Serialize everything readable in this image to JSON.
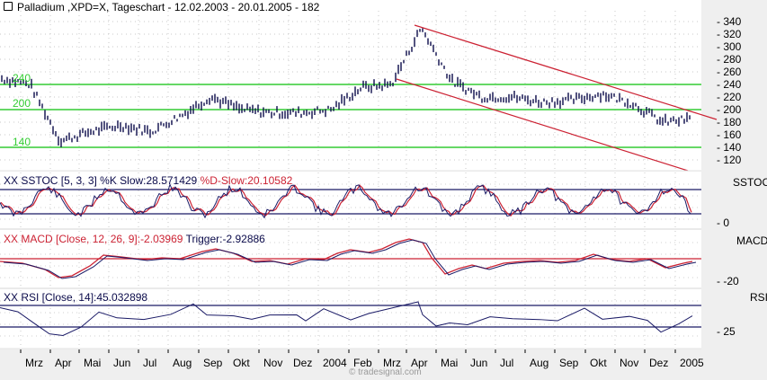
{
  "header": {
    "icon": "chart-pin-icon",
    "title": "Palladium ,XPD=X, Tageschart - 12.02.2003 - 20.01.2005 - 182"
  },
  "panels": {
    "sstoc": {
      "label": "SSTOC",
      "legend_k": "XX SSTOC [5, 3, 3] %K Slow:28.571429",
      "legend_d": "%D-Slow:20.10582",
      "tick": "0"
    },
    "macd": {
      "label": "MACD",
      "legend_macd": "XX MACD [Close, 12, 26, 9]:-2.03969",
      "legend_trigger": "Trigger:-2.92886",
      "tick": "-20"
    },
    "rsi": {
      "label": "RSI",
      "legend": "XX RSI [Close, 14]:45.032898",
      "tick": "25"
    }
  },
  "credit": "© tradesignal.com",
  "colors": {
    "price": "#0a0a4a",
    "support": "#33cc33",
    "channel": "#cc2233",
    "signal": "#cc2233",
    "band": "#1a1a66"
  },
  "chart_data": [
    {
      "type": "bar",
      "title": "Palladium ,XPD=X, Tageschart - 12.02.2003 - 20.01.2005 - 182",
      "xlabel": "",
      "ylabel": "",
      "ylim": [
        110,
        350
      ],
      "y_ticks": [
        340,
        320,
        300,
        280,
        260,
        240,
        220,
        200,
        180,
        160,
        140,
        120
      ],
      "x_ticks": [
        "Mrz",
        "Apr",
        "Mai",
        "Jun",
        "Jul",
        "Aug",
        "Sep",
        "Okt",
        "Nov",
        "Dez",
        "2004",
        "Feb",
        "Mrz",
        "Apr",
        "Mai",
        "Jun",
        "Jul",
        "Aug",
        "Sep",
        "Okt",
        "Nov",
        "Dez",
        "2005"
      ],
      "horizontal_lines": [
        {
          "value": 240,
          "label": "240",
          "color": "#33cc33"
        },
        {
          "value": 200,
          "label": "200",
          "color": "#33cc33"
        },
        {
          "value": 140,
          "label": "140",
          "color": "#33cc33"
        }
      ],
      "trend_channel": {
        "upper": [
          [
            "Apr 2004",
            335
          ],
          [
            "Jan 2005",
            182
          ]
        ],
        "lower": [
          [
            "Mrz 2004",
            250
          ],
          [
            "Jan 2005",
            117
          ]
        ]
      },
      "series": [
        {
          "name": "Palladium close (approx.)",
          "x": [
            "Feb 2003",
            "Mrz 2003",
            "Apr 2003",
            "Mai 2003",
            "Jun 2003",
            "Jul 2003",
            "Aug 2003",
            "Sep 2003",
            "Okt 2003",
            "Nov 2003",
            "Dez 2003",
            "Jan 2004",
            "Feb 2004",
            "Mrz 2004",
            "Apr 2004",
            "Mai 2004",
            "Jun 2004",
            "Jul 2004",
            "Aug 2004",
            "Sep 2004",
            "Okt 2004",
            "Nov 2004",
            "Dez 2004",
            "Jan 2005"
          ],
          "values": [
            250,
            240,
            150,
            165,
            175,
            165,
            190,
            220,
            200,
            195,
            195,
            200,
            235,
            240,
            330,
            245,
            220,
            220,
            212,
            215,
            225,
            210,
            180,
            185
          ]
        }
      ],
      "legend": []
    },
    {
      "type": "line",
      "title": "XX SSTOC [5, 3, 3] %K Slow:28.571429 %D-Slow:20.10582",
      "series": [
        {
          "name": "%K Slow",
          "last": 28.571429
        },
        {
          "name": "%D-Slow",
          "last": 20.10582
        }
      ],
      "bands": [
        80,
        20
      ],
      "y_ticks": [
        0
      ]
    },
    {
      "type": "line",
      "title": "XX MACD [Close, 12, 26, 9]:-2.03969 Trigger:-2.92886",
      "series": [
        {
          "name": "MACD",
          "last": -2.03969
        },
        {
          "name": "Trigger",
          "last": -2.92886
        }
      ],
      "y_ticks": [
        -20
      ]
    },
    {
      "type": "line",
      "title": "XX RSI [Close, 14]:45.032898",
      "series": [
        {
          "name": "RSI",
          "last": 45.032898
        }
      ],
      "bands": [
        70,
        30
      ],
      "y_ticks": [
        25
      ]
    }
  ],
  "axis_labels": {
    "price": [
      "340",
      "320",
      "300",
      "280",
      "260",
      "240",
      "220",
      "200",
      "180",
      "160",
      "140",
      "120"
    ],
    "support": [
      "240",
      "200",
      "140"
    ],
    "months": [
      "Mrz",
      "Apr",
      "Mai",
      "Jun",
      "Jul",
      "Aug",
      "Sep",
      "Okt",
      "Nov",
      "Dez",
      "2004",
      "Feb",
      "Mrz",
      "Apr",
      "Mai",
      "Jun",
      "Jul",
      "Aug",
      "Sep",
      "Okt",
      "Nov",
      "Dez",
      "2005"
    ]
  }
}
